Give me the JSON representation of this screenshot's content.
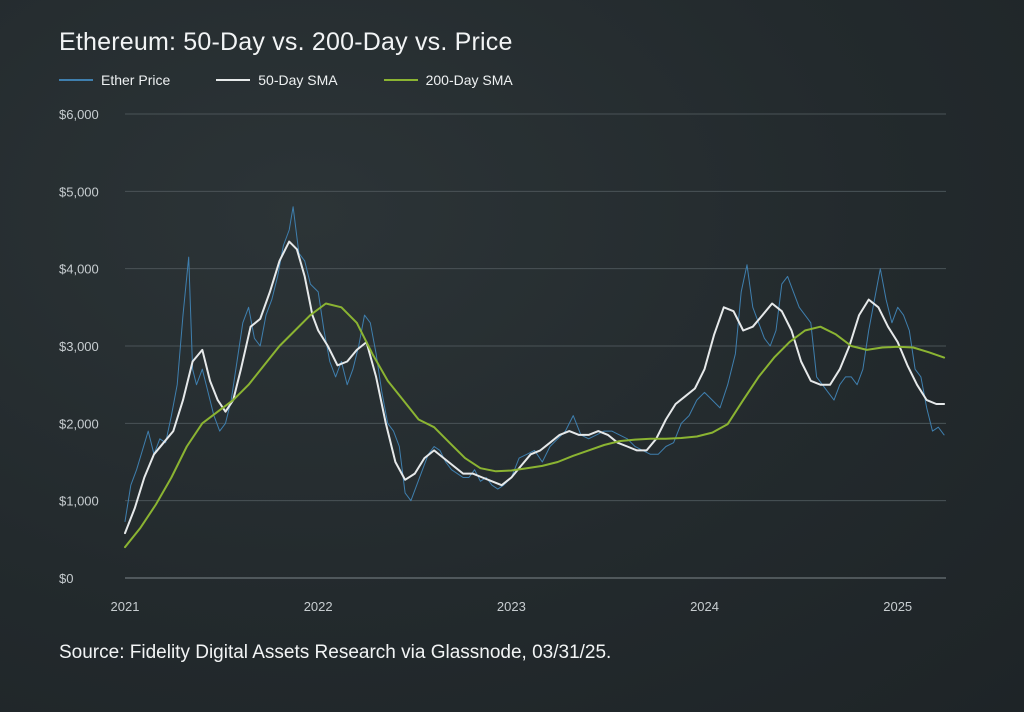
{
  "chart_data": {
    "type": "line",
    "title": "Ethereum: 50-Day vs. 200-Day vs. Price",
    "xlabel": "",
    "ylabel": "",
    "x_ticks": [
      "2021",
      "2022",
      "2023",
      "2024",
      "2025"
    ],
    "y_ticks": [
      "$0",
      "$1,000",
      "$2,000",
      "$3,000",
      "$4,000",
      "$5,000",
      "$6,000"
    ],
    "ylim": [
      0,
      6000
    ],
    "xlim": [
      2021.0,
      2025.25
    ],
    "grid": "horizontal",
    "legend_position": "top-left",
    "series": [
      {
        "name": "Ether Price",
        "color": "#3f7fae",
        "x": [
          2021.0,
          2021.03,
          2021.06,
          2021.09,
          2021.12,
          2021.15,
          2021.18,
          2021.21,
          2021.24,
          2021.27,
          2021.3,
          2021.33,
          2021.35,
          2021.37,
          2021.4,
          2021.43,
          2021.46,
          2021.49,
          2021.52,
          2021.55,
          2021.58,
          2021.61,
          2021.64,
          2021.67,
          2021.7,
          2021.73,
          2021.76,
          2021.79,
          2021.82,
          2021.85,
          2021.87,
          2021.9,
          2021.93,
          2021.96,
          2022.0,
          2022.03,
          2022.06,
          2022.09,
          2022.12,
          2022.15,
          2022.18,
          2022.21,
          2022.24,
          2022.27,
          2022.3,
          2022.33,
          2022.36,
          2022.39,
          2022.42,
          2022.45,
          2022.48,
          2022.51,
          2022.54,
          2022.57,
          2022.6,
          2022.63,
          2022.66,
          2022.69,
          2022.72,
          2022.75,
          2022.78,
          2022.81,
          2022.84,
          2022.87,
          2022.9,
          2022.93,
          2022.96,
          2023.0,
          2023.04,
          2023.08,
          2023.12,
          2023.16,
          2023.2,
          2023.24,
          2023.28,
          2023.32,
          2023.36,
          2023.4,
          2023.44,
          2023.48,
          2023.52,
          2023.56,
          2023.6,
          2023.64,
          2023.68,
          2023.72,
          2023.76,
          2023.8,
          2023.84,
          2023.88,
          2023.92,
          2023.96,
          2024.0,
          2024.04,
          2024.08,
          2024.12,
          2024.16,
          2024.19,
          2024.22,
          2024.25,
          2024.28,
          2024.31,
          2024.34,
          2024.37,
          2024.4,
          2024.43,
          2024.46,
          2024.49,
          2024.52,
          2024.55,
          2024.58,
          2024.61,
          2024.64,
          2024.67,
          2024.7,
          2024.73,
          2024.76,
          2024.79,
          2024.82,
          2024.85,
          2024.88,
          2024.91,
          2024.94,
          2024.97,
          2025.0,
          2025.03,
          2025.06,
          2025.09,
          2025.12,
          2025.15,
          2025.18,
          2025.21,
          2025.24
        ],
        "values": [
          730,
          1200,
          1400,
          1650,
          1900,
          1600,
          1800,
          1750,
          2100,
          2500,
          3400,
          4150,
          2700,
          2500,
          2700,
          2400,
          2100,
          1900,
          2000,
          2300,
          2800,
          3300,
          3500,
          3100,
          3000,
          3400,
          3600,
          3900,
          4300,
          4500,
          4800,
          4200,
          4100,
          3800,
          3700,
          3200,
          2800,
          2600,
          2800,
          2500,
          2700,
          3000,
          3400,
          3300,
          2900,
          2400,
          2000,
          1900,
          1700,
          1100,
          1000,
          1200,
          1400,
          1600,
          1700,
          1650,
          1500,
          1400,
          1350,
          1300,
          1300,
          1400,
          1250,
          1300,
          1200,
          1150,
          1200,
          1300,
          1550,
          1600,
          1650,
          1500,
          1700,
          1800,
          1900,
          2100,
          1850,
          1800,
          1850,
          1900,
          1900,
          1850,
          1800,
          1700,
          1650,
          1600,
          1600,
          1700,
          1750,
          2000,
          2100,
          2300,
          2400,
          2300,
          2200,
          2500,
          2900,
          3700,
          4050,
          3500,
          3300,
          3100,
          3000,
          3200,
          3800,
          3900,
          3700,
          3500,
          3400,
          3300,
          2600,
          2500,
          2400,
          2300,
          2500,
          2600,
          2600,
          2500,
          2700,
          3200,
          3600,
          4000,
          3600,
          3300,
          3500,
          3400,
          3200,
          2700,
          2600,
          2200,
          1900,
          1950,
          1850
        ]
      },
      {
        "name": "50-Day SMA",
        "color": "#e6e9ea",
        "x": [
          2021.0,
          2021.05,
          2021.1,
          2021.15,
          2021.2,
          2021.25,
          2021.3,
          2021.35,
          2021.4,
          2021.44,
          2021.48,
          2021.52,
          2021.56,
          2021.6,
          2021.65,
          2021.7,
          2021.75,
          2021.8,
          2021.85,
          2021.89,
          2021.93,
          2021.97,
          2022.0,
          2022.05,
          2022.1,
          2022.15,
          2022.2,
          2022.25,
          2022.3,
          2022.35,
          2022.4,
          2022.45,
          2022.5,
          2022.55,
          2022.6,
          2022.65,
          2022.7,
          2022.75,
          2022.8,
          2022.85,
          2022.9,
          2022.95,
          2023.0,
          2023.05,
          2023.1,
          2023.15,
          2023.2,
          2023.25,
          2023.3,
          2023.35,
          2023.4,
          2023.45,
          2023.5,
          2023.55,
          2023.6,
          2023.65,
          2023.7,
          2023.75,
          2023.8,
          2023.85,
          2023.9,
          2023.95,
          2024.0,
          2024.05,
          2024.1,
          2024.15,
          2024.2,
          2024.25,
          2024.3,
          2024.35,
          2024.4,
          2024.45,
          2024.5,
          2024.55,
          2024.6,
          2024.65,
          2024.7,
          2024.75,
          2024.8,
          2024.85,
          2024.9,
          2024.95,
          2025.0,
          2025.05,
          2025.1,
          2025.15,
          2025.2,
          2025.24
        ],
        "values": [
          580,
          900,
          1300,
          1600,
          1750,
          1900,
          2300,
          2800,
          2950,
          2550,
          2300,
          2150,
          2300,
          2700,
          3250,
          3350,
          3700,
          4100,
          4350,
          4250,
          3900,
          3400,
          3200,
          3000,
          2750,
          2800,
          2950,
          3050,
          2600,
          2000,
          1500,
          1270,
          1350,
          1550,
          1650,
          1550,
          1450,
          1350,
          1350,
          1300,
          1250,
          1200,
          1300,
          1450,
          1600,
          1650,
          1750,
          1850,
          1900,
          1850,
          1850,
          1900,
          1850,
          1750,
          1700,
          1650,
          1650,
          1800,
          2050,
          2250,
          2350,
          2450,
          2700,
          3150,
          3500,
          3450,
          3200,
          3250,
          3400,
          3550,
          3450,
          3200,
          2800,
          2550,
          2500,
          2500,
          2700,
          3000,
          3400,
          3600,
          3500,
          3250,
          3050,
          2750,
          2500,
          2300,
          2250,
          2250
        ]
      },
      {
        "name": "200-Day SMA",
        "color": "#8bb432",
        "x": [
          2021.0,
          2021.08,
          2021.16,
          2021.24,
          2021.32,
          2021.4,
          2021.48,
          2021.56,
          2021.64,
          2021.72,
          2021.8,
          2021.88,
          2021.96,
          2022.04,
          2022.12,
          2022.2,
          2022.28,
          2022.36,
          2022.44,
          2022.52,
          2022.6,
          2022.68,
          2022.76,
          2022.84,
          2022.92,
          2023.0,
          2023.08,
          2023.16,
          2023.24,
          2023.32,
          2023.4,
          2023.48,
          2023.56,
          2023.64,
          2023.72,
          2023.8,
          2023.88,
          2023.96,
          2024.04,
          2024.12,
          2024.2,
          2024.28,
          2024.36,
          2024.44,
          2024.52,
          2024.6,
          2024.68,
          2024.76,
          2024.84,
          2024.92,
          2025.0,
          2025.08,
          2025.16,
          2025.24
        ],
        "values": [
          400,
          650,
          950,
          1300,
          1700,
          2000,
          2150,
          2300,
          2500,
          2750,
          3000,
          3200,
          3400,
          3550,
          3500,
          3300,
          2900,
          2550,
          2300,
          2050,
          1950,
          1750,
          1550,
          1420,
          1380,
          1390,
          1420,
          1450,
          1500,
          1580,
          1650,
          1720,
          1770,
          1790,
          1800,
          1800,
          1810,
          1830,
          1880,
          1990,
          2300,
          2600,
          2850,
          3050,
          3200,
          3250,
          3150,
          3000,
          2950,
          2980,
          2990,
          2980,
          2920,
          2850
        ]
      }
    ]
  },
  "source_text": "Source: Fidelity Digital Assets Research via Glassnode, 03/31/25."
}
